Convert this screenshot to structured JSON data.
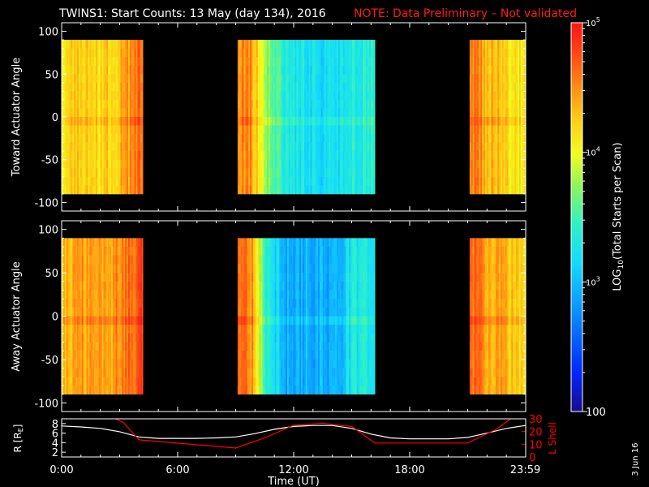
{
  "title": {
    "main": "TWINS1: Start Counts: 13 May (day 134), 2016",
    "note": "NOTE: Data Preliminary – Not validated"
  },
  "colors": {
    "background": "#000000",
    "axes": "#ffffff",
    "note": "#ff1a1a",
    "lshell": "#ff0000",
    "radius": "#ffffff"
  },
  "date_stamp": "3 Jun 16",
  "chart_data": [
    {
      "type": "heatmap",
      "name": "toward",
      "ylabel": "Toward Actuator Angle",
      "ylim": [
        -110,
        110
      ],
      "yticks": [
        100,
        50,
        0,
        -50,
        -100
      ],
      "data_ylim": [
        -90,
        90
      ],
      "x_hours_range": [
        0,
        24
      ],
      "data_blocks_hours": [
        [
          0.0,
          4.2
        ],
        [
          9.1,
          16.2
        ],
        [
          21.1,
          24.0
        ]
      ],
      "profile": [
        {
          "t": 0.0,
          "v": 4.15
        },
        {
          "t": 1.0,
          "v": 4.3
        },
        {
          "t": 2.0,
          "v": 4.15
        },
        {
          "t": 3.0,
          "v": 4.35
        },
        {
          "t": 4.0,
          "v": 4.6
        },
        {
          "t": 9.1,
          "v": 4.55
        },
        {
          "t": 9.8,
          "v": 4.45
        },
        {
          "t": 10.5,
          "v": 3.75
        },
        {
          "t": 11.5,
          "v": 3.3
        },
        {
          "t": 12.5,
          "v": 3.25
        },
        {
          "t": 14.0,
          "v": 3.15
        },
        {
          "t": 15.0,
          "v": 3.3
        },
        {
          "t": 16.2,
          "v": 3.4
        },
        {
          "t": 21.1,
          "v": 4.6
        },
        {
          "t": 22.0,
          "v": 4.35
        },
        {
          "t": 23.0,
          "v": 4.2
        },
        {
          "t": 24.0,
          "v": 4.05
        }
      ]
    },
    {
      "type": "heatmap",
      "name": "away",
      "ylabel": "Away Actuator Angle",
      "ylim": [
        -110,
        110
      ],
      "yticks": [
        100,
        50,
        0,
        -50,
        -100
      ],
      "data_ylim": [
        -90,
        90
      ],
      "x_hours_range": [
        0,
        24
      ],
      "data_blocks_hours": [
        [
          0.0,
          4.2
        ],
        [
          9.1,
          16.2
        ],
        [
          21.1,
          24.0
        ]
      ],
      "profile": [
        {
          "t": 0.0,
          "v": 4.3
        },
        {
          "t": 1.0,
          "v": 4.45
        },
        {
          "t": 2.0,
          "v": 4.35
        },
        {
          "t": 3.0,
          "v": 4.55
        },
        {
          "t": 4.0,
          "v": 4.75
        },
        {
          "t": 9.1,
          "v": 4.6
        },
        {
          "t": 9.8,
          "v": 4.5
        },
        {
          "t": 10.5,
          "v": 3.5
        },
        {
          "t": 11.5,
          "v": 2.9
        },
        {
          "t": 12.5,
          "v": 2.95
        },
        {
          "t": 14.0,
          "v": 2.9
        },
        {
          "t": 15.0,
          "v": 3.25
        },
        {
          "t": 16.2,
          "v": 3.4
        },
        {
          "t": 21.1,
          "v": 4.7
        },
        {
          "t": 22.0,
          "v": 4.45
        },
        {
          "t": 23.0,
          "v": 4.3
        },
        {
          "t": 24.0,
          "v": 4.2
        }
      ]
    },
    {
      "type": "line",
      "name": "orbit",
      "ylabel_left": "R [R",
      "ylabel_left_sub": "E",
      "ylabel_left_close": "]",
      "ylabel_right": "L Shell",
      "ylim_left": [
        1,
        9
      ],
      "yticks_left": [
        2,
        4,
        6,
        8
      ],
      "ylim_right": [
        0,
        30
      ],
      "yticks_right": [
        0,
        10,
        20,
        30
      ],
      "xlabel": "Time (UT)",
      "xticks": [
        {
          "t": 0,
          "label": "0:00"
        },
        {
          "t": 6,
          "label": "6:00"
        },
        {
          "t": 12,
          "label": "12:00"
        },
        {
          "t": 18,
          "label": "18:00"
        },
        {
          "t": 23.98,
          "label": "23:59"
        }
      ],
      "series": [
        {
          "name": "R",
          "axis": "left",
          "points": [
            [
              0,
              7.5
            ],
            [
              1,
              7.3
            ],
            [
              2,
              7.0
            ],
            [
              3,
              6.3
            ],
            [
              4,
              5.2
            ],
            [
              5,
              4.9
            ],
            [
              6,
              4.9
            ],
            [
              7,
              4.9
            ],
            [
              8,
              5.0
            ],
            [
              9,
              5.2
            ],
            [
              10,
              5.9
            ],
            [
              11,
              6.8
            ],
            [
              12,
              7.4
            ],
            [
              13,
              7.6
            ],
            [
              14,
              7.6
            ],
            [
              15,
              7.0
            ],
            [
              16,
              5.8
            ],
            [
              17,
              5.0
            ],
            [
              18,
              4.8
            ],
            [
              19,
              4.8
            ],
            [
              20,
              4.8
            ],
            [
              21,
              5.1
            ],
            [
              22,
              6.0
            ],
            [
              23,
              7.0
            ],
            [
              24,
              7.6
            ]
          ]
        },
        {
          "name": "L Shell",
          "axis": "right",
          "points": [
            [
              2.5,
              32
            ],
            [
              3.2,
              27
            ],
            [
              4.0,
              13.5
            ],
            [
              9.0,
              7
            ],
            [
              10.5,
              15
            ],
            [
              12.0,
              25
            ],
            [
              13.5,
              26.5
            ],
            [
              15.0,
              24
            ],
            [
              16.2,
              11
            ],
            [
              21.0,
              11
            ],
            [
              22.5,
              22
            ],
            [
              23.4,
              32
            ]
          ]
        }
      ]
    }
  ],
  "colorbar": {
    "label_pre": "LOG",
    "label_sub": "10",
    "label_post": "(Total Starts per Scan)",
    "range_log": [
      2,
      5
    ],
    "ticks": [
      {
        "v": 5,
        "base": "10",
        "exp": "5"
      },
      {
        "v": 4,
        "base": "10",
        "exp": "4"
      },
      {
        "v": 3,
        "base": "10",
        "exp": "3"
      },
      {
        "v": 2,
        "base": "100",
        "exp": ""
      }
    ]
  }
}
